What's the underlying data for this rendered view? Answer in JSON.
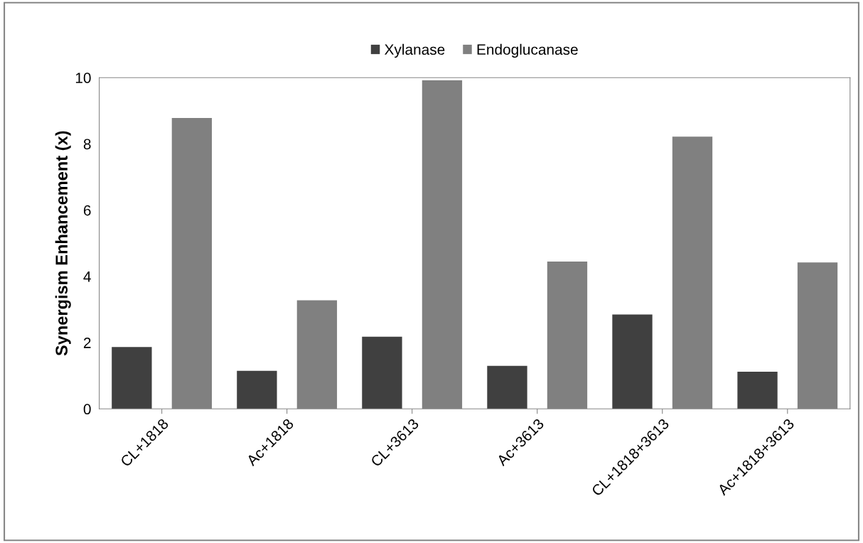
{
  "chart_data": {
    "type": "bar",
    "ylabel": "Synergism Enhancement (x)",
    "categories": [
      "CL+1818",
      "Ac+1818",
      "CL+3613",
      "Ac+3613",
      "CL+1818+3613",
      "Ac+1818+3613"
    ],
    "series": [
      {
        "name": "Xylanase",
        "color": "#404040",
        "values": [
          1.87,
          1.15,
          2.18,
          1.3,
          2.85,
          1.12
        ]
      },
      {
        "name": "Endoglucanase",
        "color": "#808080",
        "values": [
          8.78,
          3.28,
          9.92,
          4.45,
          8.22,
          4.42
        ]
      }
    ],
    "ylim": [
      0,
      10
    ],
    "yticks": [
      0,
      2,
      4,
      6,
      8,
      10
    ],
    "grid": false,
    "legend": "top"
  }
}
